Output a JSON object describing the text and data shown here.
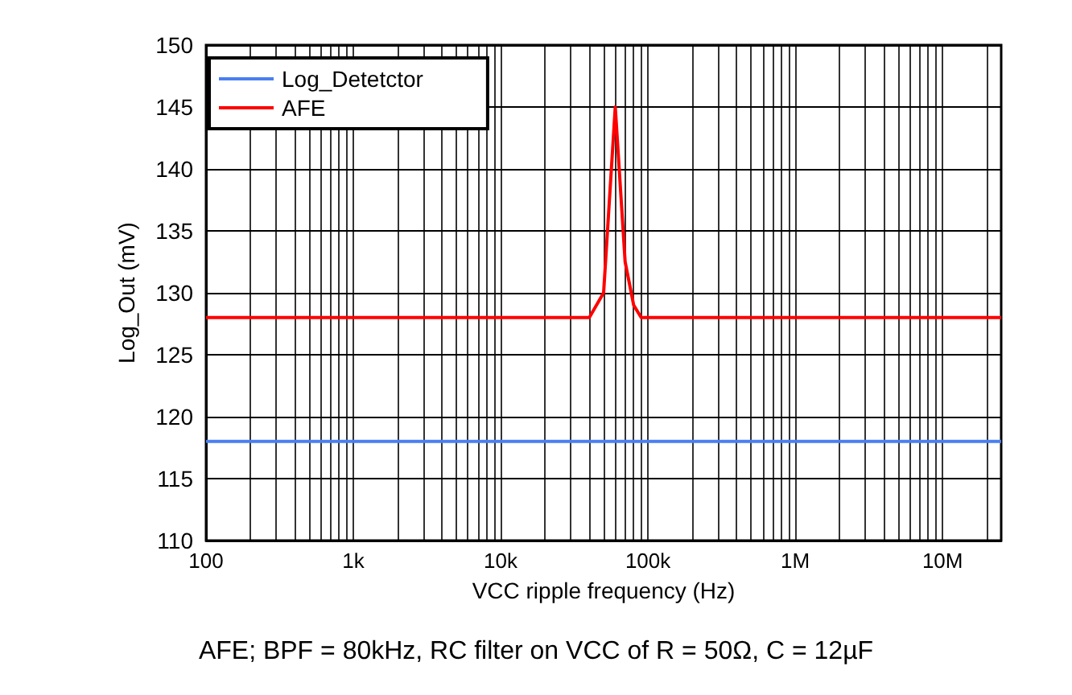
{
  "chart_data": {
    "type": "line",
    "xlabel": "VCC ripple frequency (Hz)",
    "ylabel": "Log_Out (mV)",
    "log": "x",
    "grid": true,
    "legend": "top left",
    "marker": "none",
    "line_style": "solid",
    "xlim": [
      100,
      25000000
    ],
    "xticks": [
      100,
      {
        "value": 1000,
        "label": "1k"
      },
      {
        "value": 10000,
        "label": "10k"
      },
      {
        "value": 100000,
        "label": "100k"
      },
      {
        "value": 1000000,
        "label": "1M"
      },
      {
        "value": 10000000,
        "label": "10M"
      }
    ],
    "ylim": [
      110,
      150
    ],
    "yticks": [
      110,
      115,
      120,
      125,
      130,
      135,
      140,
      145,
      150
    ],
    "series": [
      {
        "name": "Log_Detetctor",
        "color": "#4a7ff0",
        "x": [
          100,
          25000000
        ],
        "values": [
          118,
          118
        ]
      },
      {
        "name": "AFE",
        "color": "#ff0000",
        "x": [
          100,
          40000,
          50000,
          60000,
          70000,
          80000,
          90000,
          25000000
        ],
        "values": [
          128,
          128,
          130,
          145,
          132.5,
          129,
          128,
          128
        ]
      }
    ],
    "annotations": [
      "AFE; BPF = 80kHz, RC filter on VCC of R = 50Ω, C = 12µF"
    ]
  }
}
